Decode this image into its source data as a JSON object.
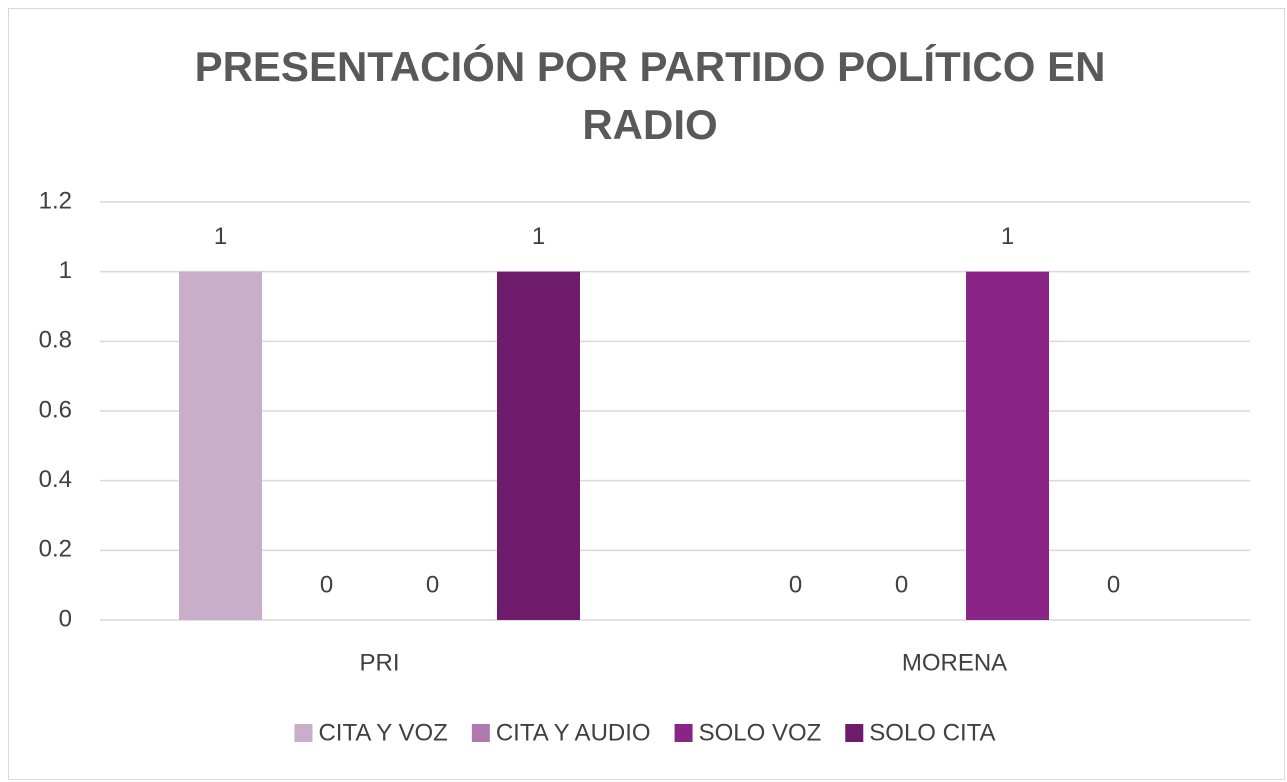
{
  "chart_data": {
    "type": "bar",
    "title": "PRESENTACIÓN POR PARTIDO POLÍTICO EN RADIO",
    "categories": [
      "PRI",
      "MORENA"
    ],
    "series": [
      {
        "name": "CITA Y VOZ",
        "color": "#c9aec9",
        "values": [
          1,
          0
        ]
      },
      {
        "name": "CITA Y AUDIO",
        "color": "#ae7aae",
        "values": [
          0,
          0
        ]
      },
      {
        "name": "SOLO VOZ",
        "color": "#8a2587",
        "values": [
          0,
          1
        ]
      },
      {
        "name": "SOLO CITA",
        "color": "#6f1b6c",
        "values": [
          1,
          0
        ]
      }
    ],
    "ylim": [
      0,
      1.2
    ],
    "yticks": [
      0,
      0.2,
      0.4,
      0.6,
      0.8,
      1,
      1.2
    ],
    "grid": true,
    "legend": "bottom"
  }
}
